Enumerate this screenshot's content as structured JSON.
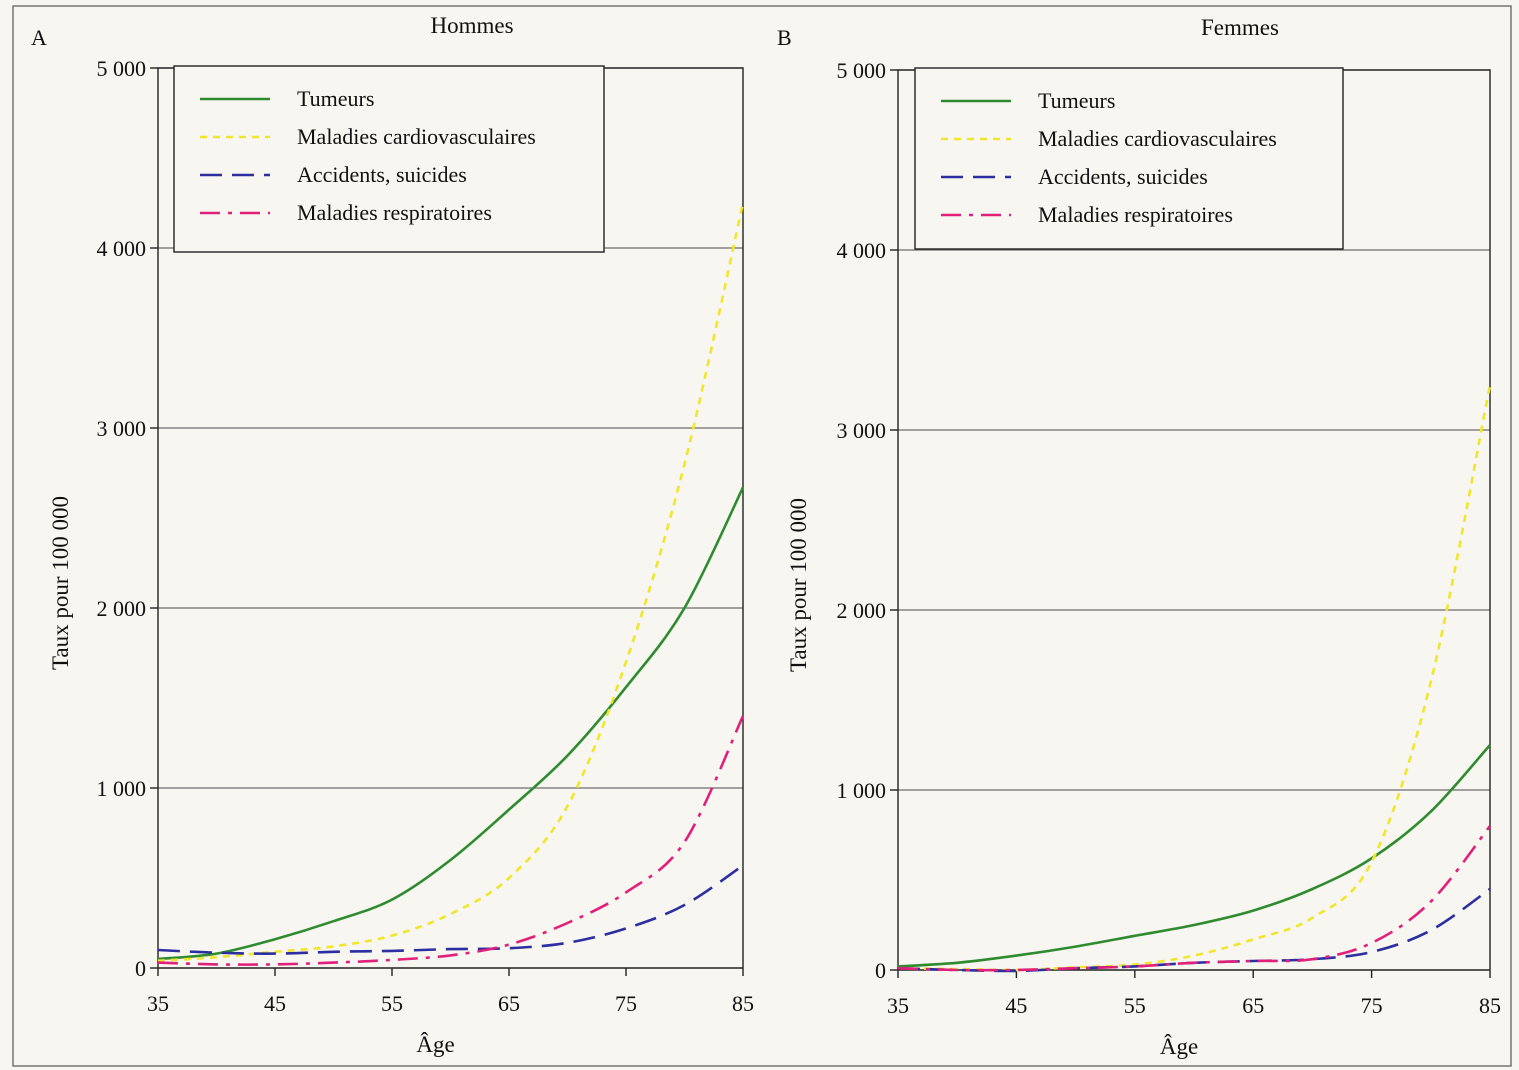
{
  "chart_data": [
    {
      "type": "line",
      "panel": "A",
      "title": "Hommes",
      "xlabel": "Âge",
      "ylabel": "Taux pour 100 000",
      "x_ticks": [
        35,
        45,
        55,
        65,
        75,
        85
      ],
      "y_ticks": [
        0,
        1000,
        2000,
        3000,
        4000,
        5000
      ],
      "y_tick_labels": [
        "0",
        "1 000",
        "2 000",
        "3 000",
        "4 000",
        "5 000"
      ],
      "xlim": [
        35,
        85
      ],
      "ylim": [
        0,
        5000
      ],
      "grid": true,
      "legend_position": "top-left",
      "x": [
        35,
        40,
        45,
        50,
        55,
        60,
        65,
        70,
        75,
        80,
        85
      ],
      "series": [
        {
          "name": "Tumeurs",
          "color": "#2e8b2e",
          "dash": "solid",
          "values": [
            50,
            80,
            160,
            260,
            380,
            600,
            880,
            1180,
            1560,
            2000,
            2670
          ]
        },
        {
          "name": "Maladies cardiovasculaires",
          "color": "#f2e62a",
          "dash": "short",
          "values": [
            40,
            60,
            90,
            120,
            180,
            300,
            500,
            900,
            1700,
            2800,
            4250
          ]
        },
        {
          "name": "Accidents, suicides",
          "color": "#2b2fa0",
          "dash": "long",
          "values": [
            100,
            85,
            80,
            90,
            95,
            105,
            110,
            140,
            220,
            350,
            570
          ]
        },
        {
          "name": "Maladies respiratoires",
          "color": "#e0207a",
          "dash": "dashdot",
          "values": [
            30,
            20,
            20,
            30,
            45,
            70,
            130,
            250,
            420,
            700,
            1400
          ]
        }
      ]
    },
    {
      "type": "line",
      "panel": "B",
      "title": "Femmes",
      "xlabel": "Âge",
      "ylabel": "Taux pour 100 000",
      "x_ticks": [
        35,
        45,
        55,
        65,
        75,
        85
      ],
      "y_ticks": [
        0,
        1000,
        2000,
        3000,
        4000,
        5000
      ],
      "y_tick_labels": [
        "0",
        "1 000",
        "2 000",
        "3 000",
        "4 000",
        "5 000"
      ],
      "xlim": [
        35,
        85
      ],
      "ylim": [
        0,
        5000
      ],
      "grid": true,
      "legend_position": "top-left",
      "x": [
        35,
        40,
        45,
        50,
        55,
        60,
        65,
        70,
        75,
        80,
        85
      ],
      "series": [
        {
          "name": "Tumeurs",
          "color": "#2e8b2e",
          "dash": "solid",
          "values": [
            20,
            40,
            80,
            130,
            190,
            250,
            330,
            450,
            620,
            880,
            1250
          ]
        },
        {
          "name": "Maladies cardiovasculaires",
          "color": "#f2e62a",
          "dash": "short",
          "values": [
            10,
            5,
            0,
            15,
            30,
            80,
            170,
            290,
            600,
            1600,
            3250
          ]
        },
        {
          "name": "Accidents, suicides",
          "color": "#2b2fa0",
          "dash": "long",
          "values": [
            10,
            0,
            -5,
            10,
            20,
            40,
            50,
            60,
            100,
            220,
            450
          ]
        },
        {
          "name": "Maladies respiratoires",
          "color": "#e0207a",
          "dash": "dashdot",
          "values": [
            10,
            0,
            0,
            10,
            20,
            40,
            50,
            60,
            150,
            380,
            800
          ]
        }
      ]
    }
  ]
}
